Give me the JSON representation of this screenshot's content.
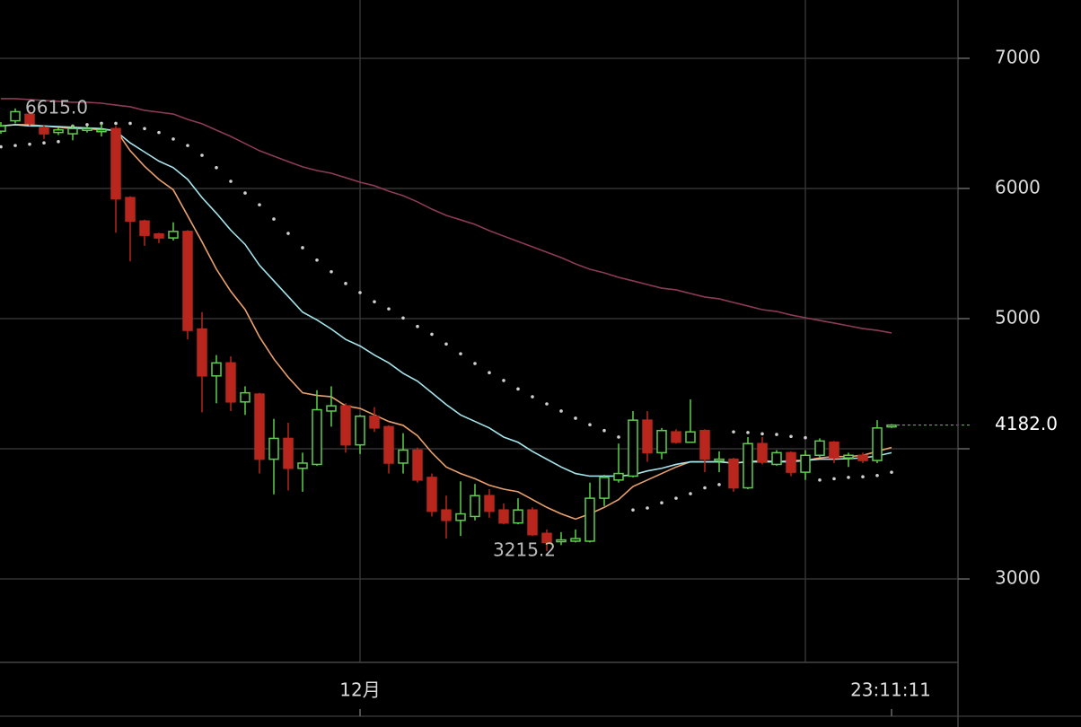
{
  "chart_data": {
    "type": "candlestick",
    "categories": [
      null,
      null,
      null,
      null,
      null,
      null,
      null,
      null,
      null,
      null,
      null,
      null,
      null,
      null,
      null,
      null,
      null,
      null,
      null,
      null,
      null,
      null,
      null,
      null,
      null,
      "12月",
      null,
      null,
      null,
      null,
      null,
      null,
      null,
      null,
      null,
      null,
      null,
      null,
      null,
      null,
      null,
      null,
      null,
      null,
      null,
      null,
      null,
      null,
      null,
      null,
      null,
      null,
      null,
      null,
      null,
      null,
      null,
      null,
      null,
      null,
      null,
      null,
      null
    ],
    "open": [
      6440,
      6520,
      6570,
      6470,
      6430,
      6420,
      6450,
      6440,
      6460,
      5930,
      5750,
      5650,
      5620,
      5670,
      4920,
      4560,
      4660,
      4360,
      4420,
      3920,
      4080,
      3850,
      3880,
      4290,
      4330,
      4030,
      4250,
      4170,
      3890,
      3990,
      3780,
      3530,
      3450,
      3480,
      3640,
      3530,
      3430,
      3530,
      3350,
      3290,
      3290,
      3290,
      3620,
      3760,
      3790,
      4220,
      3970,
      4130,
      4050,
      4140,
      3910,
      3920,
      3700,
      4040,
      3880,
      3970,
      3820,
      3950,
      4050,
      3930,
      3950,
      3910,
      4170
    ],
    "high": [
      6510,
      6615,
      6600,
      6490,
      6470,
      6490,
      6480,
      6500,
      6480,
      5940,
      5760,
      5660,
      5740,
      5680,
      5050,
      4720,
      4710,
      4480,
      4430,
      4230,
      4200,
      3970,
      4450,
      4480,
      4350,
      4260,
      4320,
      4180,
      4120,
      4010,
      3810,
      3640,
      3750,
      3730,
      3690,
      3580,
      3620,
      3550,
      3380,
      3360,
      3380,
      3740,
      3800,
      4040,
      4290,
      4290,
      4160,
      4150,
      4380,
      4150,
      3980,
      3930,
      4090,
      4090,
      3990,
      3980,
      3990,
      4080,
      4060,
      3970,
      3970,
      4220,
      4190
    ],
    "low": [
      6420,
      6500,
      6480,
      6380,
      6410,
      6370,
      6430,
      6400,
      5660,
      5440,
      5560,
      5580,
      5600,
      4840,
      4280,
      4350,
      4290,
      4260,
      3810,
      3650,
      3680,
      3670,
      3870,
      4170,
      3970,
      3960,
      4130,
      3810,
      3810,
      3740,
      3480,
      3310,
      3330,
      3450,
      3470,
      3420,
      3420,
      3330,
      3215.2,
      3260,
      3280,
      3280,
      3560,
      3740,
      3780,
      3900,
      3920,
      4040,
      4050,
      3820,
      3820,
      3670,
      3690,
      3880,
      3870,
      3790,
      3760,
      3930,
      3890,
      3860,
      3890,
      3890,
      4160
    ],
    "close": [
      6480,
      6590,
      6500,
      6420,
      6450,
      6460,
      6460,
      6450,
      5920,
      5750,
      5640,
      5620,
      5670,
      4910,
      4560,
      4660,
      4360,
      4430,
      3920,
      4080,
      3850,
      3890,
      4300,
      4330,
      4030,
      4250,
      4160,
      3890,
      3990,
      3760,
      3520,
      3450,
      3500,
      3640,
      3520,
      3430,
      3530,
      3340,
      3280,
      3300,
      3310,
      3620,
      3780,
      3810,
      4220,
      3970,
      4140,
      4050,
      4130,
      3920,
      3920,
      3700,
      4040,
      3900,
      3970,
      3820,
      3950,
      4060,
      3930,
      3950,
      3910,
      4160,
      4182
    ],
    "up_color": "#5ccf4a",
    "down_color": "#b8261d",
    "lines": [
      {
        "color": "#e9a06c",
        "style": "line",
        "values": [
          6480,
          6490,
          6490,
          6480,
          6470,
          6460,
          6460,
          6450,
          6450,
          6290,
          6170,
          6070,
          5990,
          5790,
          5590,
          5380,
          5210,
          5070,
          4860,
          4690,
          4550,
          4430,
          4410,
          4400,
          4330,
          4310,
          4260,
          4210,
          4180,
          4100,
          3970,
          3860,
          3810,
          3770,
          3720,
          3690,
          3670,
          3610,
          3550,
          3500,
          3460,
          3500,
          3550,
          3610,
          3710,
          3760,
          3810,
          3860,
          3900,
          3900,
          3900,
          3890,
          3900,
          3910,
          3900,
          3910,
          3910,
          3930,
          3940,
          3940,
          3950,
          3980,
          4010
        ]
      },
      {
        "color": "#a6e4ec",
        "style": "line",
        "values": [
          6480,
          6490,
          6480,
          6480,
          6475,
          6470,
          6465,
          6460,
          6440,
          6350,
          6280,
          6210,
          6160,
          6070,
          5930,
          5810,
          5680,
          5570,
          5410,
          5290,
          5170,
          5050,
          4990,
          4920,
          4840,
          4790,
          4720,
          4660,
          4580,
          4520,
          4430,
          4340,
          4260,
          4210,
          4160,
          4090,
          4050,
          3980,
          3920,
          3860,
          3810,
          3790,
          3790,
          3790,
          3800,
          3830,
          3850,
          3880,
          3900,
          3900,
          3900,
          3890,
          3900,
          3900,
          3900,
          3900,
          3910,
          3920,
          3920,
          3925,
          3930,
          3945,
          3970
        ]
      },
      {
        "color": "#8c3b57",
        "style": "line",
        "values": [
          6690,
          6690,
          6683,
          6676,
          6669,
          6662,
          6662,
          6655,
          6641,
          6628,
          6600,
          6586,
          6572,
          6531,
          6497,
          6448,
          6400,
          6345,
          6290,
          6248,
          6207,
          6166,
          6138,
          6117,
          6083,
          6048,
          6021,
          5979,
          5945,
          5897,
          5841,
          5793,
          5759,
          5724,
          5676,
          5634,
          5593,
          5552,
          5510,
          5469,
          5421,
          5379,
          5352,
          5317,
          5290,
          5262,
          5234,
          5221,
          5193,
          5166,
          5152,
          5124,
          5097,
          5069,
          5055,
          5028,
          5007,
          4986,
          4966,
          4945,
          4924,
          4910,
          4890
        ]
      },
      {
        "color": "#d0d0d0",
        "style": "dots",
        "values": [
          6320,
          6330,
          6340,
          6350,
          6360,
          6480,
          6490,
          6500,
          6500,
          6500,
          6460,
          6430,
          6380,
          6330,
          6255,
          6160,
          6055,
          5965,
          5875,
          5765,
          5655,
          5545,
          5450,
          5360,
          5270,
          5200,
          5130,
          5075,
          5005,
          4940,
          4880,
          4805,
          4730,
          4655,
          4585,
          4525,
          4460,
          4400,
          4345,
          4290,
          4235,
          4185,
          4140,
          4090,
          3530,
          3545,
          3585,
          3620,
          3655,
          3700,
          3725,
          4130,
          4125,
          4115,
          4110,
          4095,
          4085,
          3760,
          3770,
          3780,
          3785,
          3795,
          3820
        ]
      }
    ],
    "ylim": [
      2359,
      7448
    ],
    "yticks": [
      3000,
      5000,
      6000,
      7000
    ],
    "ygrid": [
      3000,
      4000,
      5000,
      6000,
      7000
    ],
    "grid": true,
    "high_label": "6615.0",
    "low_label": "3215.2",
    "last_price_label": "4182.0",
    "time_label": "23:11:11"
  }
}
